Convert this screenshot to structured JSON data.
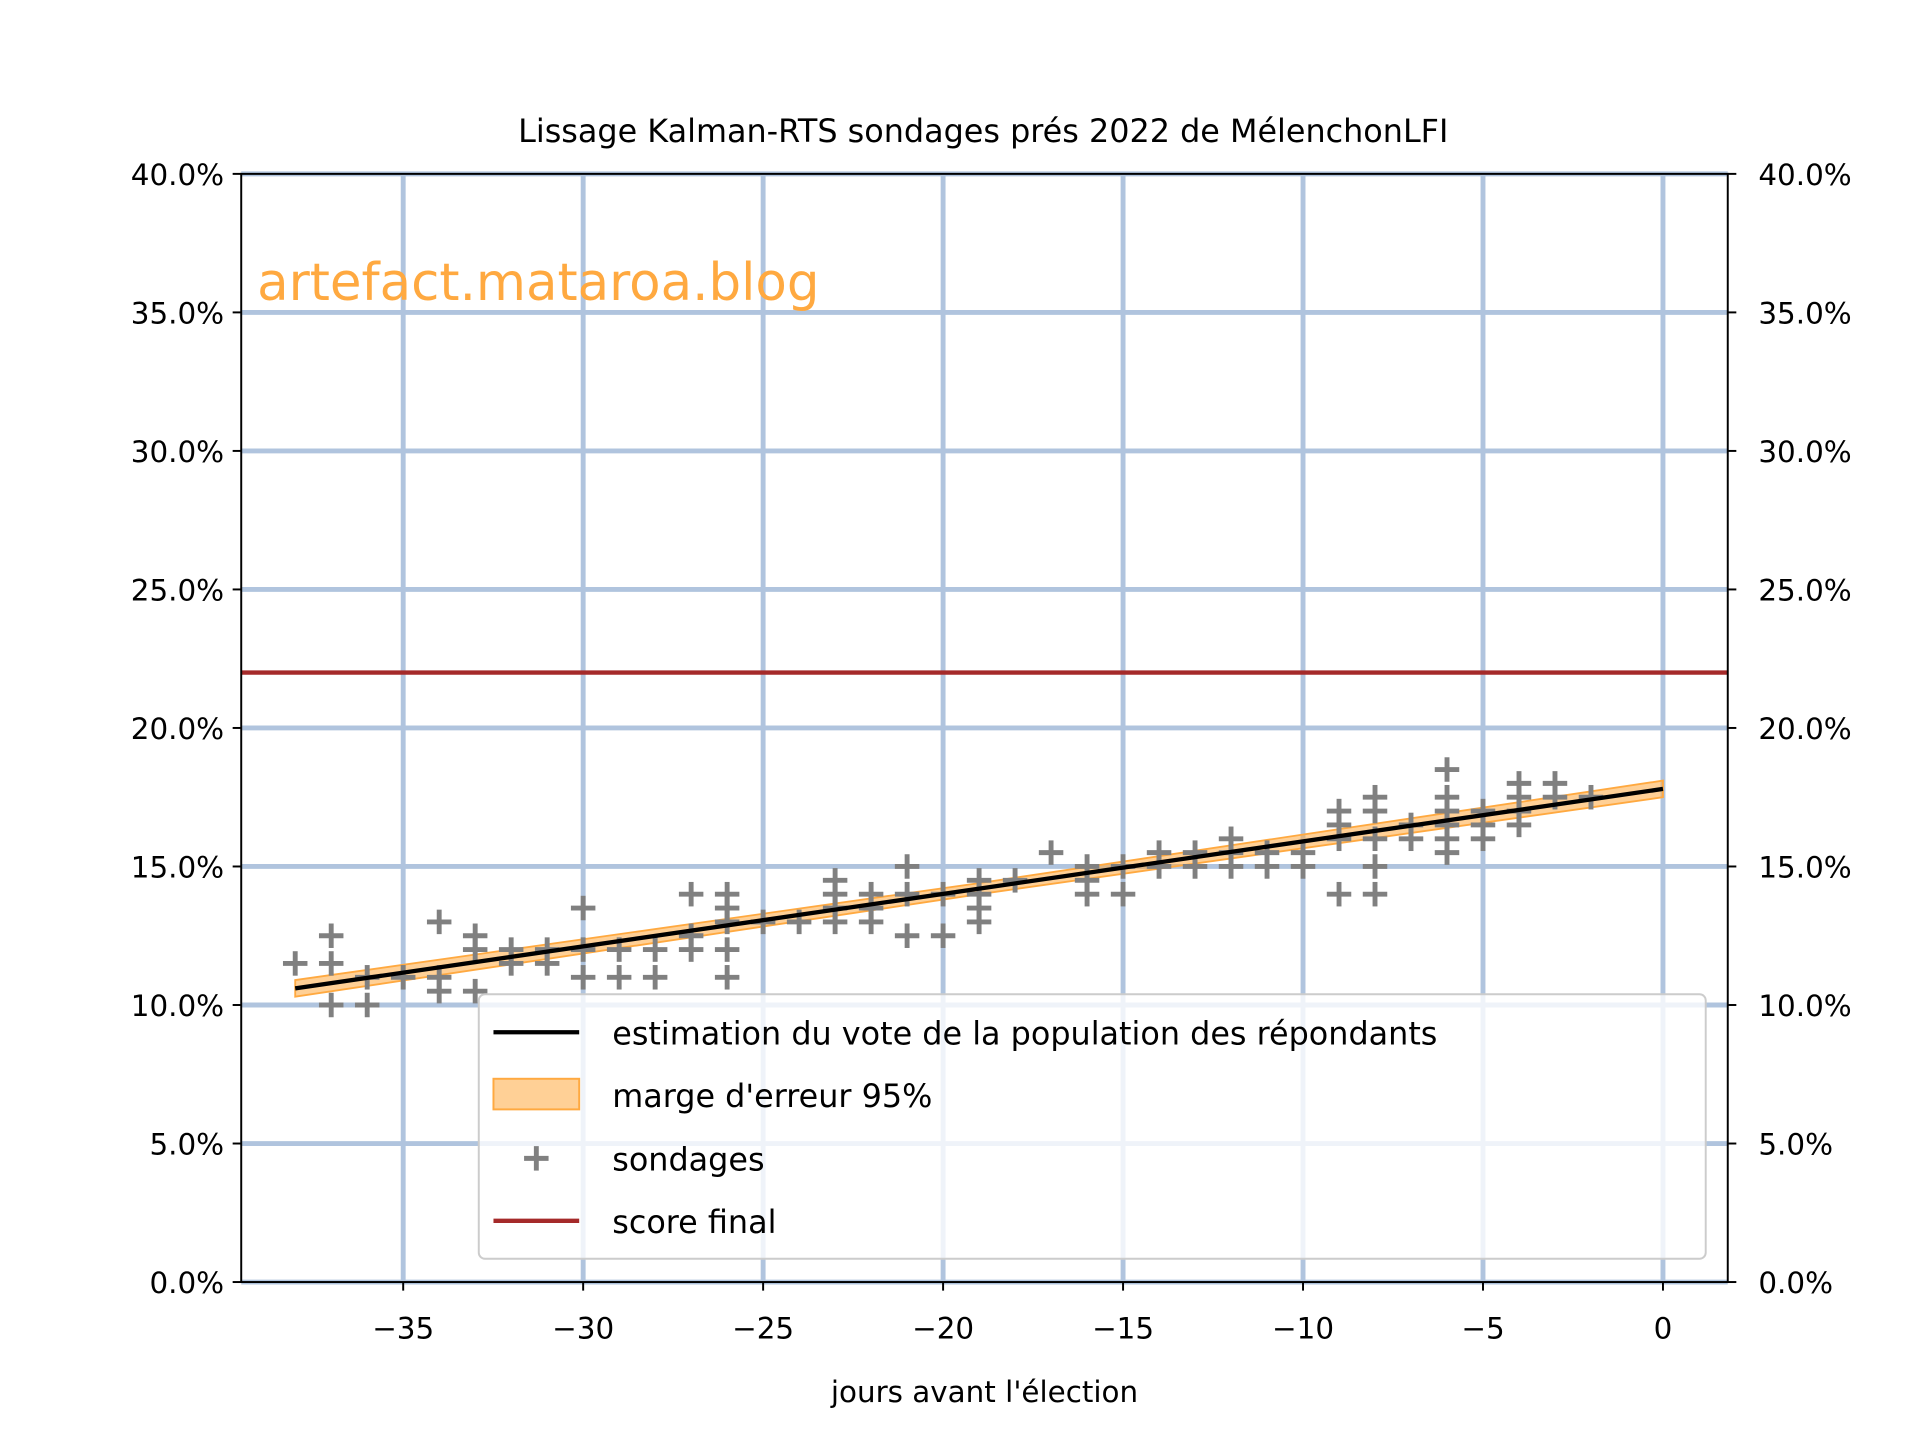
{
  "chart_data": {
    "type": "scatter",
    "title": "Lissage Kalman-RTS sondages prés 2022 de MélenchonLFI",
    "xlabel": "jours avant l'élection",
    "ylabel": "",
    "watermark": "artefact.mataroa.blog",
    "xlim": [
      -39.5,
      1.8
    ],
    "ylim": [
      0,
      40
    ],
    "grid": true,
    "x_ticks": [
      -35,
      -30,
      -25,
      -20,
      -15,
      -10,
      -5,
      0
    ],
    "x_tick_labels": [
      "−35",
      "−30",
      "−25",
      "−20",
      "−15",
      "−10",
      "−5",
      "0"
    ],
    "y_ticks": [
      0,
      5,
      10,
      15,
      20,
      25,
      30,
      35,
      40
    ],
    "y_tick_labels": [
      "0.0%",
      "5.0%",
      "10.0%",
      "15.0%",
      "20.0%",
      "25.0%",
      "30.0%",
      "35.0%",
      "40.0%"
    ],
    "legend_position": "lower-right",
    "colors": {
      "estimate": "#000000",
      "band": "#ffa940",
      "polls": "#808080",
      "final": "#a52a2a",
      "grid": "#b0c4de",
      "watermark": "#ffa940"
    },
    "series": [
      {
        "name": "estimation du vote de la population des répondants",
        "type": "line",
        "x": [
          -38,
          0
        ],
        "y": [
          10.6,
          17.8
        ]
      },
      {
        "name": "marge d'erreur 95%",
        "type": "band",
        "x": [
          -38,
          -19,
          0
        ],
        "lower": [
          10.3,
          14.0,
          17.5
        ],
        "upper": [
          10.9,
          14.4,
          18.1
        ]
      },
      {
        "name": "sondages",
        "type": "scatter",
        "points": [
          [
            -38,
            11.5
          ],
          [
            -37,
            12.5
          ],
          [
            -37,
            11.5
          ],
          [
            -37,
            10.0
          ],
          [
            -36,
            11.0
          ],
          [
            -36,
            10.0
          ],
          [
            -35,
            11.0
          ],
          [
            -34,
            13.0
          ],
          [
            -34,
            11.0
          ],
          [
            -34,
            10.5
          ],
          [
            -33,
            12.5
          ],
          [
            -33,
            12.0
          ],
          [
            -33,
            10.5
          ],
          [
            -32,
            12.0
          ],
          [
            -32,
            11.5
          ],
          [
            -31,
            12.0
          ],
          [
            -31,
            11.5
          ],
          [
            -30,
            13.5
          ],
          [
            -30,
            12.0
          ],
          [
            -30,
            11.0
          ],
          [
            -29,
            12.0
          ],
          [
            -29,
            11.0
          ],
          [
            -28,
            12.0
          ],
          [
            -28,
            11.0
          ],
          [
            -27,
            14.0
          ],
          [
            -27,
            12.5
          ],
          [
            -27,
            12.0
          ],
          [
            -26,
            14.0
          ],
          [
            -26,
            13.5
          ],
          [
            -26,
            13.0
          ],
          [
            -26,
            12.0
          ],
          [
            -26,
            11.0
          ],
          [
            -25,
            13.0
          ],
          [
            -24,
            13.0
          ],
          [
            -23,
            14.5
          ],
          [
            -23,
            14.0
          ],
          [
            -23,
            13.5
          ],
          [
            -23,
            13.0
          ],
          [
            -22,
            14.0
          ],
          [
            -22,
            13.5
          ],
          [
            -22,
            13.0
          ],
          [
            -21,
            15.0
          ],
          [
            -21,
            14.0
          ],
          [
            -21,
            12.5
          ],
          [
            -20,
            14.0
          ],
          [
            -20,
            12.5
          ],
          [
            -19,
            14.5
          ],
          [
            -19,
            14.0
          ],
          [
            -19,
            13.5
          ],
          [
            -19,
            13.0
          ],
          [
            -18,
            14.5
          ],
          [
            -17,
            15.5
          ],
          [
            -16,
            15.0
          ],
          [
            -16,
            14.5
          ],
          [
            -16,
            14.0
          ],
          [
            -15,
            15.0
          ],
          [
            -15,
            14.0
          ],
          [
            -14,
            15.5
          ],
          [
            -14,
            15.0
          ],
          [
            -13,
            15.5
          ],
          [
            -13,
            15.0
          ],
          [
            -12,
            16.0
          ],
          [
            -12,
            15.5
          ],
          [
            -12,
            15.0
          ],
          [
            -11,
            15.5
          ],
          [
            -11,
            15.0
          ],
          [
            -10,
            15.5
          ],
          [
            -10,
            15.0
          ],
          [
            -9,
            17.0
          ],
          [
            -9,
            16.5
          ],
          [
            -9,
            16.0
          ],
          [
            -9,
            14.0
          ],
          [
            -8,
            17.5
          ],
          [
            -8,
            17.0
          ],
          [
            -8,
            16.0
          ],
          [
            -8,
            15.0
          ],
          [
            -8,
            14.0
          ],
          [
            -7,
            16.5
          ],
          [
            -7,
            16.0
          ],
          [
            -6,
            18.5
          ],
          [
            -6,
            17.5
          ],
          [
            -6,
            17.0
          ],
          [
            -6,
            16.5
          ],
          [
            -6,
            16.0
          ],
          [
            -6,
            15.5
          ],
          [
            -5,
            17.0
          ],
          [
            -5,
            16.5
          ],
          [
            -5,
            16.0
          ],
          [
            -4,
            18.0
          ],
          [
            -4,
            17.5
          ],
          [
            -4,
            17.0
          ],
          [
            -4,
            16.5
          ],
          [
            -3,
            18.0
          ],
          [
            -3,
            17.5
          ],
          [
            -2,
            17.5
          ]
        ]
      },
      {
        "name": "score final",
        "type": "hline",
        "y": 22.0
      }
    ]
  }
}
